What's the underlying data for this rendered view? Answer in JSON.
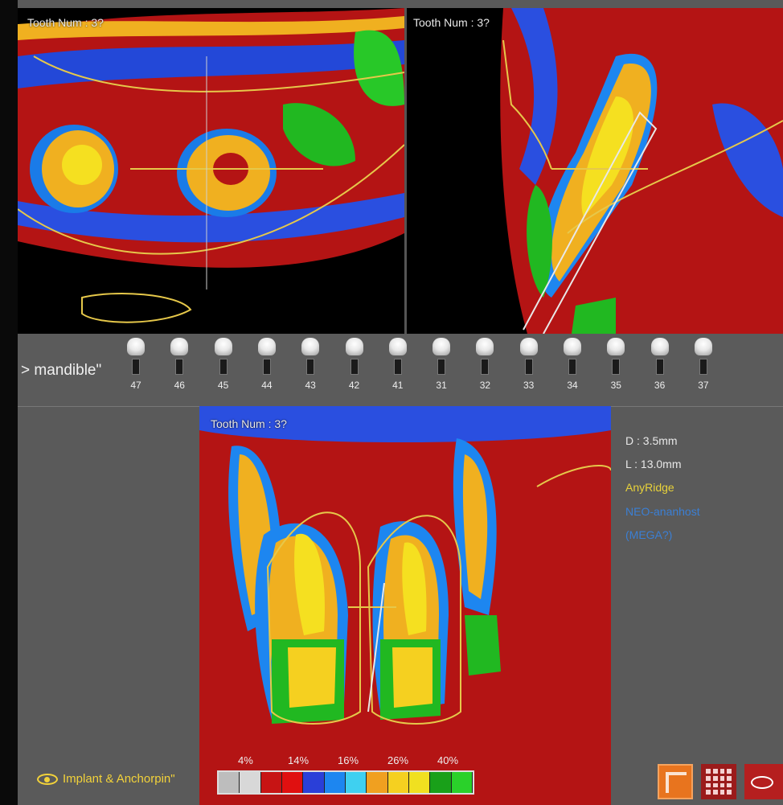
{
  "panels": {
    "top_left": {
      "label": "Tooth Num : 3?"
    },
    "top_right": {
      "label": "Tooth Num : 3?"
    },
    "bottom": {
      "label": "Tooth Num : 3?"
    }
  },
  "arch": {
    "label": "> mandible\""
  },
  "teeth": [
    "47",
    "46",
    "45",
    "44",
    "43",
    "42",
    "41",
    "31",
    "32",
    "33",
    "34",
    "35",
    "36",
    "37"
  ],
  "implant_info": {
    "diameter": "D : 3.5mm",
    "length": "L : 13.0mm",
    "system": "AnyRidge",
    "line1": "NEO-ananhost",
    "line2": "(MEGA?)",
    "system_color": "#e8d23a",
    "link_color": "#3b7fd4"
  },
  "legend": {
    "percents": [
      "4%",
      "14%",
      "16%",
      "26%",
      "40%"
    ],
    "colors": [
      "#bdbdbd",
      "#d8d8d8",
      "#c71414",
      "#e01010",
      "#2a3fd8",
      "#1d86f0",
      "#3fd0f0",
      "#f0a020",
      "#f5d020",
      "#f0e020",
      "#19a019",
      "#2ad12a"
    ]
  },
  "brand": {
    "name": "Implant & Anchorpin\""
  },
  "toolbar": {
    "icons": [
      "crop-icon",
      "grid-icon",
      "view-icon"
    ]
  }
}
